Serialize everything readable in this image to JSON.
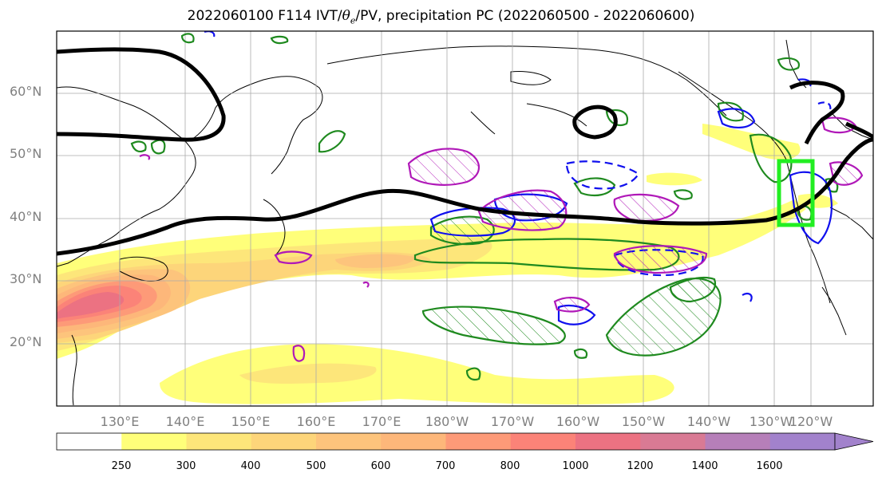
{
  "title_prefix": "2022060100 F114 IVT/",
  "title_theta": "θ",
  "title_theta_sub": "e",
  "title_suffix": "/PV, precipitation PC (2022060500 - 2022060600)",
  "lat_labels": [
    "60°N",
    "50°N",
    "40°N",
    "30°N",
    "20°N"
  ],
  "lon_labels": [
    "130°E",
    "140°E",
    "150°E",
    "160°E",
    "170°E",
    "180°W",
    "170°W",
    "160°W",
    "150°W",
    "140°W",
    "130°W",
    "120°W"
  ],
  "colorbar_ticks": [
    "250",
    "300",
    "400",
    "500",
    "600",
    "700",
    "800",
    "1000",
    "1200",
    "1400",
    "1600"
  ],
  "colors": {
    "ivt_levels": [
      "#ffff7a",
      "#fde67a",
      "#fdd57a",
      "#fdc47c",
      "#fdb77a",
      "#fd9a78",
      "#fb8378",
      "#ec7282",
      "#d97a94",
      "#b67fb9",
      "#a282cc"
    ],
    "theta_e_contour": "#000000",
    "pv_contour": "#b018b8",
    "precip_positive": "#1f8a1f",
    "precip_negative": "#1010ee",
    "target_box": "#22ee22"
  }
}
